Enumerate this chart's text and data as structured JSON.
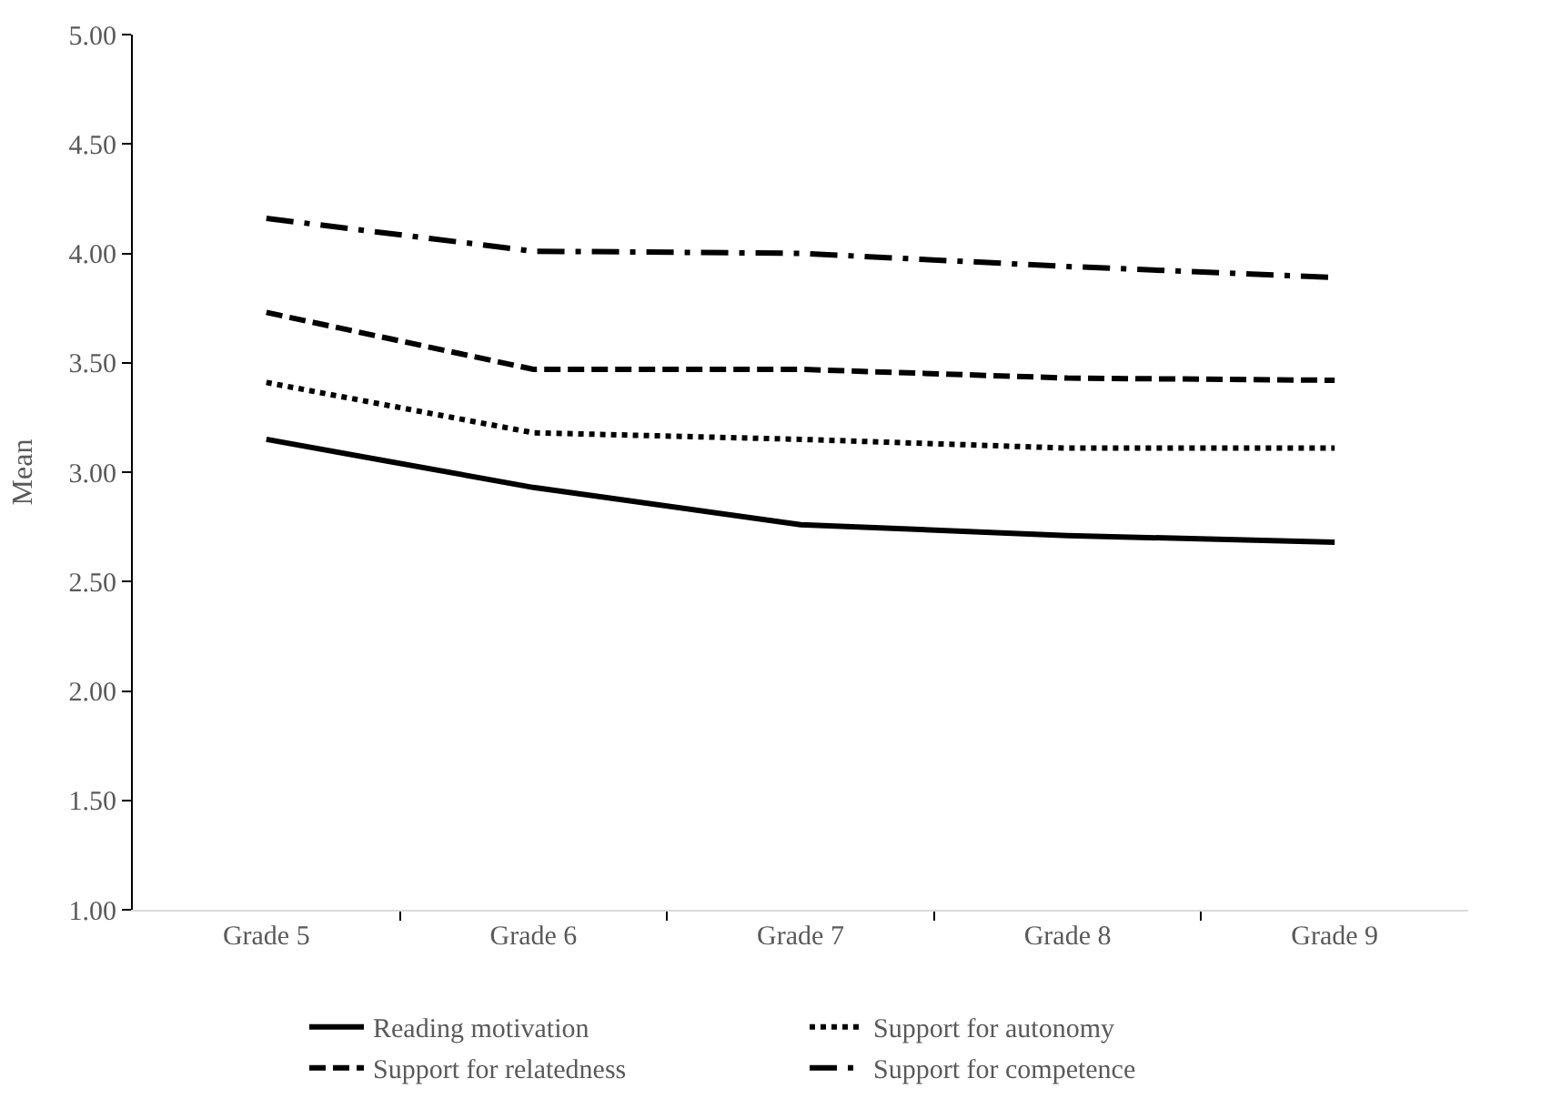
{
  "chart_data": {
    "type": "line",
    "ylabel": "Mean",
    "categories": [
      "Grade 5",
      "Grade 6",
      "Grade 7",
      "Grade 8",
      "Grade 9"
    ],
    "series": [
      {
        "name": "Reading motivation",
        "color": "#000000",
        "line_style": "solid",
        "values": [
          3.15,
          2.93,
          2.76,
          2.71,
          2.68
        ]
      },
      {
        "name": "Support for autonomy",
        "color": "#000000",
        "line_style": "dotted",
        "values": [
          3.41,
          3.18,
          3.15,
          3.11,
          3.11
        ]
      },
      {
        "name": "Support for relatedness",
        "color": "#000000",
        "line_style": "dashed",
        "values": [
          3.73,
          3.47,
          3.47,
          3.43,
          3.42
        ]
      },
      {
        "name": "Support for competence",
        "color": "#000000",
        "line_style": "dashdot",
        "values": [
          4.16,
          4.01,
          4.0,
          3.94,
          3.89
        ]
      }
    ],
    "ylim": [
      1.0,
      5.0
    ],
    "yticks": [
      {
        "value": 1.0,
        "label": "1.00"
      },
      {
        "value": 1.5,
        "label": "1.50"
      },
      {
        "value": 2.0,
        "label": "2.00"
      },
      {
        "value": 2.5,
        "label": "2.50"
      },
      {
        "value": 3.0,
        "label": "3.00"
      },
      {
        "value": 3.5,
        "label": "3.50"
      },
      {
        "value": 4.0,
        "label": "4.00"
      },
      {
        "value": 4.5,
        "label": "4.50"
      },
      {
        "value": 5.0,
        "label": "5.00"
      }
    ],
    "legend": "bottom",
    "marker": "none"
  }
}
